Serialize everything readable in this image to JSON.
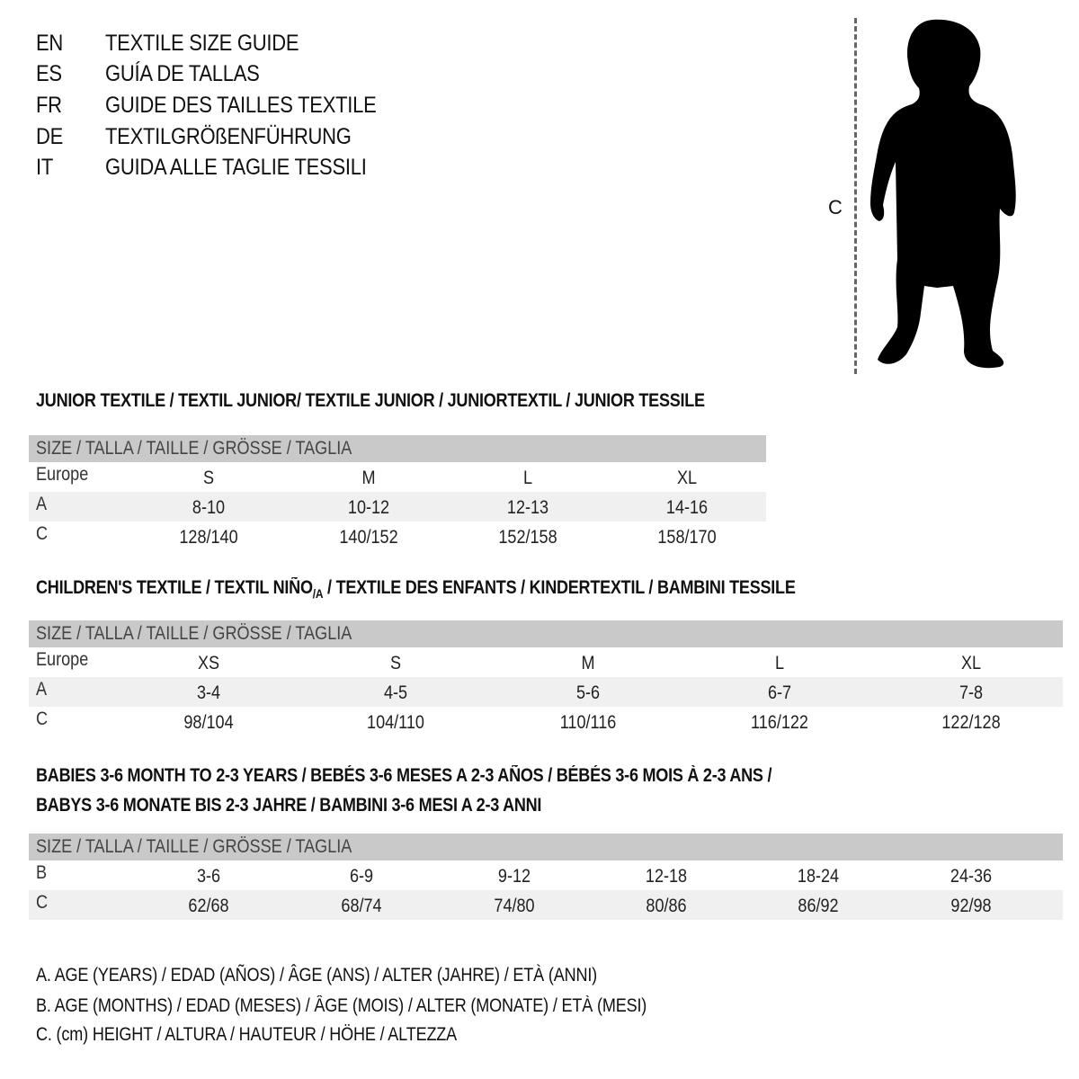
{
  "languages": [
    {
      "code": "EN",
      "title": "TEXTILE SIZE GUIDE"
    },
    {
      "code": "ES",
      "title": "GUÍA DE TALLAS"
    },
    {
      "code": "FR",
      "title": "GUIDE DES TAILLES TEXTILE"
    },
    {
      "code": "DE",
      "title": "TEXTILGRÖßENFÜHRUNG"
    },
    {
      "code": "IT",
      "title": "GUIDA ALLE TAGLIE TESSILI"
    }
  ],
  "figure": {
    "measure_label": "C",
    "icon": "child-silhouette"
  },
  "junior": {
    "title": "JUNIOR TEXTILE / TEXTIL JUNIOR/ TEXTILE JUNIOR / JUNIORTEXTIL / JUNIOR TESSILE",
    "header": "SIZE / TALLA / TAILLE / GRÖSSE / TAGLIA",
    "rows": [
      {
        "label": "Europe",
        "values": [
          "S",
          "M",
          "L",
          "XL"
        ]
      },
      {
        "label": "A",
        "values": [
          "8-10",
          "10-12",
          "12-13",
          "14-16"
        ]
      },
      {
        "label": "C",
        "values": [
          "128/140",
          "140/152",
          "152/158",
          "158/170"
        ]
      }
    ]
  },
  "children": {
    "title_a": "CHILDREN'S TEXTILE / TEXTIL NIÑO",
    "title_sub": "/A",
    "title_b": " / TEXTILE DES ENFANTS / KINDERTEXTIL / BAMBINI TESSILE",
    "header": "SIZE / TALLA / TAILLE / GRÖSSE / TAGLIA",
    "rows": [
      {
        "label": "Europe",
        "values": [
          "XS",
          "S",
          "M",
          "L",
          "XL"
        ]
      },
      {
        "label": "A",
        "values": [
          "3-4",
          "4-5",
          "5-6",
          "6-7",
          "7-8"
        ]
      },
      {
        "label": "C",
        "values": [
          "98/104",
          "104/110",
          "110/116",
          "116/122",
          "122/128"
        ]
      }
    ]
  },
  "babies": {
    "title_line1": "BABIES 3-6 MONTH TO 2-3 YEARS / BEBÉS 3-6 MESES A 2-3 AÑOS / BÉBÉS 3-6 MOIS À 2-3 ANS /",
    "title_line2": "BABYS 3-6 MONATE BIS 2-3 JAHRE / BAMBINI 3-6 MESI A 2-3 ANNI",
    "header": "SIZE / TALLA / TAILLE / GRÖSSE / TAGLIA",
    "rows": [
      {
        "label": "B",
        "values": [
          "3-6",
          "6-9",
          "9-12",
          "12-18",
          "18-24",
          "24-36"
        ]
      },
      {
        "label": "C",
        "values": [
          "62/68",
          "68/74",
          "74/80",
          "80/86",
          "86/92",
          "92/98"
        ]
      }
    ]
  },
  "legend": [
    "A. AGE (YEARS) / EDAD (AÑOS) / ÂGE (ANS) / ALTER (JAHRE) / ETÀ (ANNI)",
    "B. AGE (MONTHS) / EDAD (MESES) / ÂGE (MOIS) / ALTER (MONATE) / ETÀ (MESI)",
    "C. (cm) HEIGHT / ALTURA / HAUTEUR / HÖHE / ALTEZZA"
  ]
}
